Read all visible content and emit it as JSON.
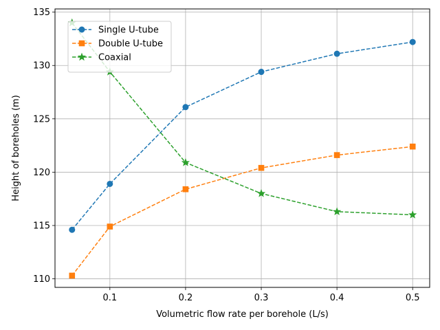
{
  "chart_data": {
    "type": "line",
    "title": "",
    "xlabel": "Volumetric flow rate per borehole (L/s)",
    "ylabel": "Height of boreholes (m)",
    "xlim": [
      0.0275,
      0.5225
    ],
    "ylim": [
      109.2,
      135.3
    ],
    "x": [
      0.05,
      0.1,
      0.2,
      0.3,
      0.4,
      0.5
    ],
    "x_ticks": [
      0.1,
      0.2,
      0.3,
      0.4,
      0.5
    ],
    "x_tick_labels": [
      "0.1",
      "0.2",
      "0.3",
      "0.4",
      "0.5"
    ],
    "y_ticks": [
      110,
      115,
      120,
      125,
      130,
      135
    ],
    "y_tick_labels": [
      "110",
      "115",
      "120",
      "125",
      "130",
      "135"
    ],
    "grid": true,
    "legend_position": "top-left",
    "series": [
      {
        "name": "Single U-tube",
        "values": [
          114.6,
          118.9,
          126.1,
          129.4,
          131.1,
          132.2
        ],
        "color": "#1f77b4",
        "marker": "circle",
        "line_style": "dashed"
      },
      {
        "name": "Double U-tube",
        "values": [
          110.3,
          114.9,
          118.4,
          120.4,
          121.6,
          122.4
        ],
        "color": "#ff7f0e",
        "marker": "square",
        "line_style": "dashed"
      },
      {
        "name": "Coaxial",
        "values": [
          134.0,
          129.4,
          120.9,
          118.0,
          116.3,
          116.0
        ],
        "color": "#2ca02c",
        "marker": "star",
        "line_style": "dashed"
      }
    ]
  }
}
